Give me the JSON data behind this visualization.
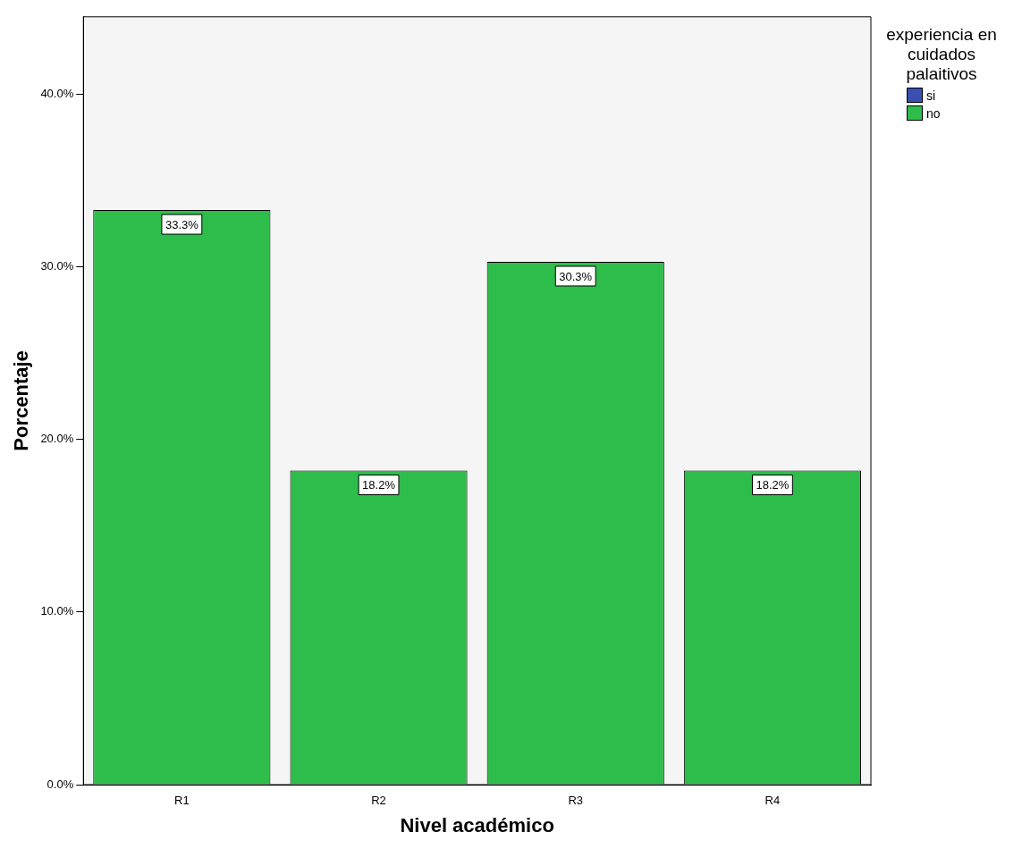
{
  "chart_data": {
    "type": "bar",
    "xlabel": "Nivel académico",
    "ylabel": "Porcentaje",
    "legend_title": "experiencia en cuidados palaitivos",
    "legend": "top right",
    "categories": [
      "R1",
      "R2",
      "R3",
      "R4"
    ],
    "series": [
      {
        "name": "si",
        "color": "#3a4fb0",
        "values": [
          null,
          null,
          null,
          null
        ]
      },
      {
        "name": "no",
        "color": "#2ebd4b",
        "values": [
          33.3,
          18.2,
          30.3,
          18.2
        ],
        "value_labels": [
          "33.3%",
          "18.2%",
          "30.3%",
          "18.2%"
        ]
      }
    ],
    "ylim": [
      0,
      44.5
    ],
    "yticks": [
      {
        "value": 0,
        "label": "0.0%"
      },
      {
        "value": 10,
        "label": "10.0%"
      },
      {
        "value": 20,
        "label": "20.0%"
      },
      {
        "value": 30,
        "label": "30.0%"
      },
      {
        "value": 40,
        "label": "40.0%"
      }
    ],
    "grid": false
  }
}
